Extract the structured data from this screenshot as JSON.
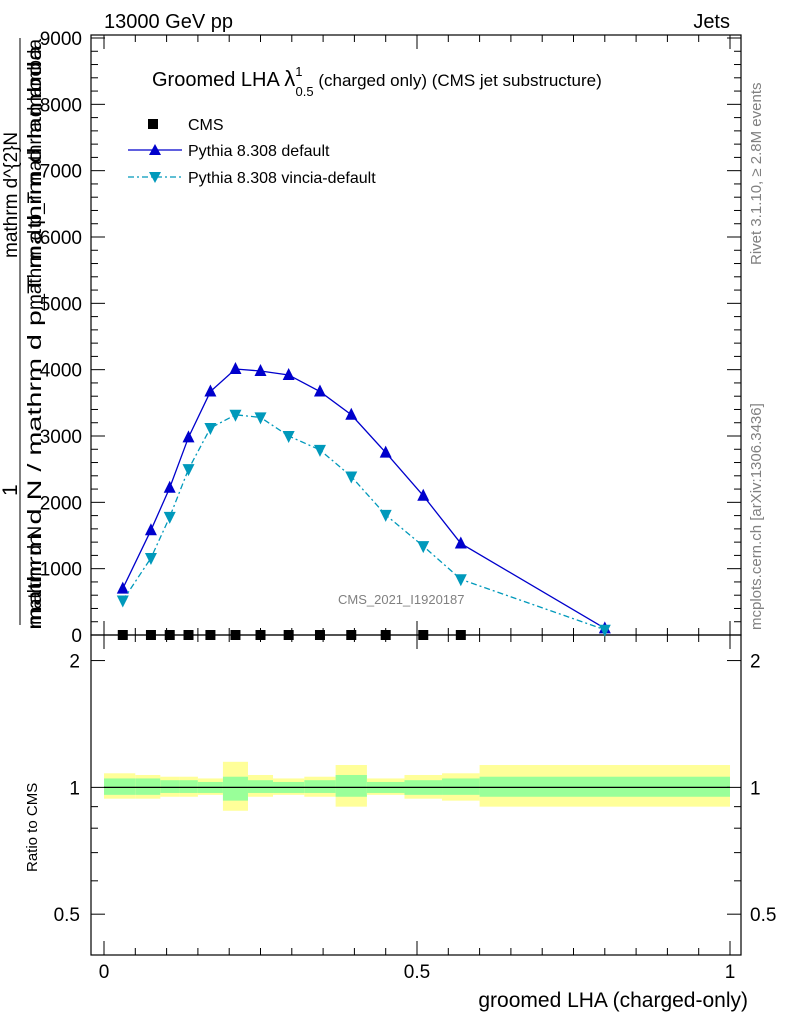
{
  "header": {
    "left": "13000 GeV pp",
    "right": "Jets"
  },
  "side_labels": {
    "rivet": "Rivet 3.1.10, ≥ 2.8M events",
    "mcplots": "mcplots.cern.ch [arXiv:1306.3436]"
  },
  "watermark": "CMS_2021_I1920187",
  "main_title": {
    "prefix": "Groomed LHA ",
    "lambda": "λ",
    "sup": "1",
    "sub": "0.5",
    "suffix": " (charged only) (CMS jet substructure)"
  },
  "main_ylabel": {
    "one": "1",
    "numerator": "mathrm d N",
    "denominator": "mathrm d N / mathrm d p_T mathrm d lambda",
    "overlap_1": "mathrm d^{2}N",
    "overlap_2": "mathrm d p_T mathrm d lambda"
  },
  "ratio_ylabel": "Ratio to CMS",
  "xlabel": "groomed LHA (charged-only)",
  "colors": {
    "pythia_default": "#0000cc",
    "pythia_vincia": "#0099bb",
    "band_inner": "#99ff99",
    "band_outer": "#ffff99"
  },
  "chart_data": [
    {
      "type": "line",
      "panel": "main",
      "xlim": [
        0,
        1
      ],
      "ylim": [
        0,
        9000
      ],
      "yticks": [
        0,
        1000,
        2000,
        3000,
        4000,
        5000,
        6000,
        7000,
        8000,
        9000
      ],
      "ytick_labels": [
        "0",
        "1000",
        "2000",
        "3000",
        "4000",
        "5000",
        "6000",
        "7000",
        "8000",
        "9000"
      ],
      "legend_position": "top-left",
      "series": [
        {
          "name": "CMS",
          "marker": "square",
          "x": [
            0.03,
            0.075,
            0.105,
            0.135,
            0.17,
            0.21,
            0.25,
            0.295,
            0.345,
            0.395,
            0.45,
            0.51,
            0.57
          ],
          "values": [
            0,
            0,
            0,
            0,
            0,
            0,
            0,
            0,
            0,
            0,
            0,
            0,
            0
          ]
        },
        {
          "name": "Pythia 8.308 default",
          "marker": "triangle-up",
          "x": [
            0.03,
            0.075,
            0.105,
            0.135,
            0.17,
            0.21,
            0.25,
            0.295,
            0.345,
            0.395,
            0.45,
            0.51,
            0.57,
            0.8
          ],
          "values": [
            700,
            1580,
            2220,
            2980,
            3670,
            4010,
            3980,
            3920,
            3670,
            3320,
            2750,
            2100,
            1380,
            100
          ]
        },
        {
          "name": "Pythia 8.308 vincia-default",
          "marker": "triangle-down",
          "x": [
            0.03,
            0.075,
            0.105,
            0.135,
            0.17,
            0.21,
            0.25,
            0.295,
            0.345,
            0.395,
            0.45,
            0.51,
            0.57,
            0.8
          ],
          "values": [
            520,
            1160,
            1780,
            2500,
            3120,
            3320,
            3280,
            3000,
            2790,
            2390,
            1810,
            1340,
            840,
            80
          ]
        }
      ]
    },
    {
      "type": "area",
      "panel": "ratio",
      "xlim": [
        0,
        1
      ],
      "ylim": [
        0.4,
        2.3
      ],
      "yscale": "log",
      "yticks": [
        0.5,
        1,
        2
      ],
      "ytick_labels": [
        "0.5",
        "1",
        "2"
      ],
      "xticks": [
        0,
        0.5,
        1
      ],
      "xtick_labels": [
        "0",
        "0.5",
        "1"
      ],
      "bins": [
        {
          "x0": 0.0,
          "x1": 0.05,
          "inner": [
            0.96,
            1.05
          ],
          "outer": [
            0.94,
            1.08
          ]
        },
        {
          "x0": 0.05,
          "x1": 0.09,
          "inner": [
            0.96,
            1.05
          ],
          "outer": [
            0.94,
            1.07
          ]
        },
        {
          "x0": 0.09,
          "x1": 0.12,
          "inner": [
            0.97,
            1.04
          ],
          "outer": [
            0.95,
            1.06
          ]
        },
        {
          "x0": 0.12,
          "x1": 0.15,
          "inner": [
            0.97,
            1.04
          ],
          "outer": [
            0.95,
            1.06
          ]
        },
        {
          "x0": 0.15,
          "x1": 0.19,
          "inner": [
            0.97,
            1.03
          ],
          "outer": [
            0.96,
            1.05
          ]
        },
        {
          "x0": 0.19,
          "x1": 0.23,
          "inner": [
            0.93,
            1.06
          ],
          "outer": [
            0.88,
            1.15
          ]
        },
        {
          "x0": 0.23,
          "x1": 0.27,
          "inner": [
            0.97,
            1.04
          ],
          "outer": [
            0.95,
            1.07
          ]
        },
        {
          "x0": 0.27,
          "x1": 0.32,
          "inner": [
            0.97,
            1.03
          ],
          "outer": [
            0.96,
            1.05
          ]
        },
        {
          "x0": 0.32,
          "x1": 0.37,
          "inner": [
            0.97,
            1.04
          ],
          "outer": [
            0.95,
            1.06
          ]
        },
        {
          "x0": 0.37,
          "x1": 0.42,
          "inner": [
            0.95,
            1.07
          ],
          "outer": [
            0.9,
            1.13
          ]
        },
        {
          "x0": 0.42,
          "x1": 0.48,
          "inner": [
            0.97,
            1.03
          ],
          "outer": [
            0.96,
            1.05
          ]
        },
        {
          "x0": 0.48,
          "x1": 0.54,
          "inner": [
            0.96,
            1.04
          ],
          "outer": [
            0.94,
            1.07
          ]
        },
        {
          "x0": 0.54,
          "x1": 0.6,
          "inner": [
            0.96,
            1.05
          ],
          "outer": [
            0.93,
            1.08
          ]
        },
        {
          "x0": 0.6,
          "x1": 1.0,
          "inner": [
            0.95,
            1.06
          ],
          "outer": [
            0.9,
            1.13
          ]
        }
      ],
      "reference_line": 1
    }
  ]
}
